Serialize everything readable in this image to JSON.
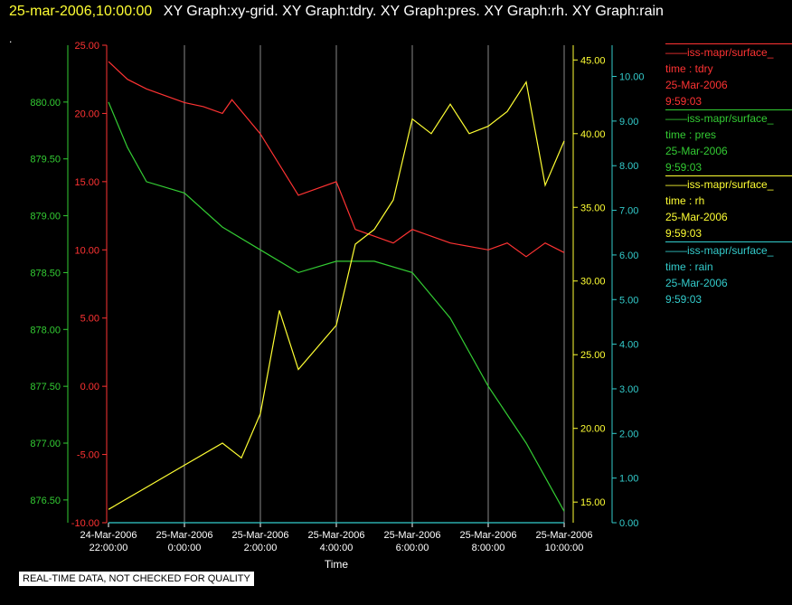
{
  "header": {
    "timestamp": "25-mar-2006,10:00:00",
    "graphs": "XY Graph:xy-grid.  XY Graph:tdry.  XY Graph:pres.  XY Graph:rh.  XY Graph:rain"
  },
  "dot": ".",
  "footer_notice": "REAL-TIME DATA, NOT CHECKED FOR QUALITY",
  "legend": [
    {
      "source": "iss-mapr/surface_",
      "var": "time : tdry",
      "date": "25-Mar-2006",
      "time": "9:59:03",
      "color": "#ff3333"
    },
    {
      "source": "iss-mapr/surface_",
      "var": "time : pres",
      "date": "25-Mar-2006",
      "time": "9:59:03",
      "color": "#33cc33"
    },
    {
      "source": "iss-mapr/surface_",
      "var": "time : rh",
      "date": "25-Mar-2006",
      "time": "9:59:03",
      "color": "#ffff33"
    },
    {
      "source": "iss-mapr/surface_",
      "var": "time : rain",
      "date": "25-Mar-2006",
      "time": "9:59:03",
      "color": "#33cccc"
    }
  ],
  "chart_data": {
    "type": "line",
    "xlabel": "Time",
    "x_ticks": [
      {
        "date": "24-Mar-2006",
        "time": "22:00:00"
      },
      {
        "date": "25-Mar-2006",
        "time": "0:00:00"
      },
      {
        "date": "25-Mar-2006",
        "time": "2:00:00"
      },
      {
        "date": "25-Mar-2006",
        "time": "4:00:00"
      },
      {
        "date": "25-Mar-2006",
        "time": "6:00:00"
      },
      {
        "date": "25-Mar-2006",
        "time": "8:00:00"
      },
      {
        "date": "25-Mar-2006",
        "time": "10:00:00"
      }
    ],
    "xlim": [
      "24-Mar-2006 22:00:00",
      "25-Mar-2006 10:00:00"
    ],
    "grid": "vertical",
    "axes": {
      "pres": {
        "color": "#33cc33",
        "ylim": [
          876.3,
          880.5
        ],
        "ticks": [
          "876.50",
          "877.00",
          "877.50",
          "878.00",
          "878.50",
          "879.00",
          "879.50",
          "880.00"
        ]
      },
      "tdry": {
        "color": "#ff3333",
        "ylim": [
          -10,
          25
        ],
        "ticks": [
          "-10.00",
          "-5.00",
          "0.00",
          "5.00",
          "10.00",
          "15.00",
          "20.00",
          "25.00"
        ]
      },
      "rh": {
        "color": "#ffff33",
        "ylim": [
          13.6,
          46
        ],
        "ticks": [
          "15.00",
          "20.00",
          "25.00",
          "30.00",
          "35.00",
          "40.00",
          "45.00"
        ]
      },
      "rain": {
        "color": "#33cccc",
        "ylim": [
          0,
          10.7
        ],
        "ticks": [
          "0.00",
          "1.00",
          "2.00",
          "3.00",
          "4.00",
          "5.00",
          "6.00",
          "7.00",
          "8.00",
          "9.00",
          "10.00"
        ]
      }
    },
    "series": [
      {
        "axis": "tdry",
        "color": "#ff3333",
        "x": [
          "2006-03-24 22:00",
          "2006-03-24 22:30",
          "2006-03-24 23:00",
          "2006-03-25 00:00",
          "2006-03-25 00:30",
          "2006-03-25 01:00",
          "2006-03-25 01:15",
          "2006-03-25 02:00",
          "2006-03-25 03:00",
          "2006-03-25 04:00",
          "2006-03-25 04:30",
          "2006-03-25 05:00",
          "2006-03-25 05:30",
          "2006-03-25 06:00",
          "2006-03-25 07:00",
          "2006-03-25 08:00",
          "2006-03-25 08:30",
          "2006-03-25 09:00",
          "2006-03-25 09:30",
          "2006-03-25 10:00"
        ],
        "y": [
          23.8,
          22.5,
          21.8,
          20.8,
          20.5,
          20.0,
          21.0,
          18.5,
          14.0,
          15.0,
          11.5,
          11.0,
          10.5,
          11.5,
          10.5,
          10.0,
          10.5,
          9.5,
          10.5,
          9.8
        ]
      },
      {
        "axis": "pres",
        "color": "#33cc33",
        "x": [
          "2006-03-24 22:00",
          "2006-03-24 22:30",
          "2006-03-24 23:00",
          "2006-03-25 00:00",
          "2006-03-25 01:00",
          "2006-03-25 02:00",
          "2006-03-25 03:00",
          "2006-03-25 04:00",
          "2006-03-25 05:00",
          "2006-03-25 06:00",
          "2006-03-25 07:00",
          "2006-03-25 08:00",
          "2006-03-25 09:00",
          "2006-03-25 09:30",
          "2006-03-25 10:00"
        ],
        "y": [
          880.0,
          879.6,
          879.3,
          879.2,
          878.9,
          878.7,
          878.5,
          878.6,
          878.6,
          878.5,
          878.1,
          877.5,
          877.0,
          876.7,
          876.4
        ]
      },
      {
        "axis": "rh",
        "color": "#ffff33",
        "x": [
          "2006-03-24 22:00",
          "2006-03-24 23:00",
          "2006-03-25 00:00",
          "2006-03-25 01:00",
          "2006-03-25 01:30",
          "2006-03-25 02:00",
          "2006-03-25 02:30",
          "2006-03-25 03:00",
          "2006-03-25 04:00",
          "2006-03-25 04:30",
          "2006-03-25 05:00",
          "2006-03-25 05:30",
          "2006-03-25 06:00",
          "2006-03-25 06:30",
          "2006-03-25 07:00",
          "2006-03-25 07:30",
          "2006-03-25 08:00",
          "2006-03-25 08:30",
          "2006-03-25 09:00",
          "2006-03-25 09:30",
          "2006-03-25 10:00"
        ],
        "y": [
          14.5,
          16.0,
          17.5,
          19.0,
          18.0,
          21.0,
          28.0,
          24.0,
          27.0,
          32.5,
          33.5,
          35.5,
          41.0,
          40.0,
          42.0,
          40.0,
          40.5,
          41.5,
          43.5,
          36.5,
          39.5
        ]
      },
      {
        "axis": "rain",
        "color": "#33cccc",
        "x": [
          "2006-03-24 22:00",
          "2006-03-25 10:00"
        ],
        "y": [
          0.0,
          0.0
        ]
      }
    ]
  }
}
